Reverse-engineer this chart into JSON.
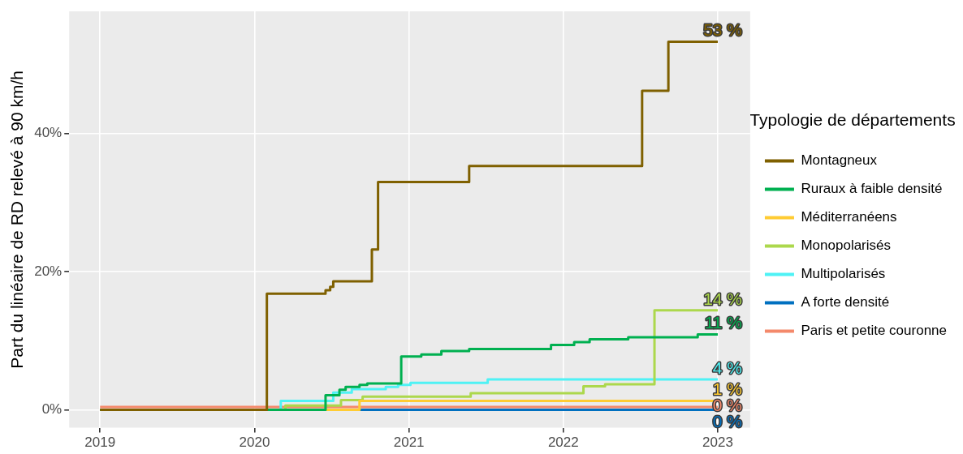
{
  "chart_data": {
    "type": "step",
    "ylabel": "Part du linéaire de RD relevé à 90 km/h",
    "legend_title": "Typologie de départements",
    "legend": "right",
    "grid": true,
    "xlim": [
      2018.8,
      2023.21
    ],
    "xticks": [
      2019,
      2020,
      2021,
      2022,
      2023
    ],
    "ylim": [
      -2.6,
      57.7
    ],
    "yticks": [
      {
        "value": 0,
        "label": "0%"
      },
      {
        "value": 20,
        "label": "20%"
      },
      {
        "value": 40,
        "label": "40%"
      }
    ],
    "series": [
      {
        "name": "Montagneux",
        "color": "#7f6000",
        "x": [
          2019,
          2020.08,
          2020.46,
          2020.49,
          2020.51,
          2020.76,
          2020.8,
          2021.39,
          2022.51,
          2022.68,
          2023
        ],
        "values": [
          0,
          16.8,
          17.3,
          17.8,
          18.6,
          23.2,
          33.0,
          35.3,
          46.2,
          53.3,
          53.3
        ],
        "value_labels": [
          null,
          null,
          null,
          null,
          null,
          null,
          null,
          null,
          null,
          null,
          "53 %"
        ]
      },
      {
        "name": "Ruraux à faible densité",
        "color": "#00b050",
        "x": [
          2019,
          2020.46,
          2020.55,
          2020.59,
          2020.68,
          2020.73,
          2020.95,
          2021.08,
          2021.21,
          2021.39,
          2021.92,
          2022.07,
          2022.17,
          2022.42,
          2022.87,
          2023
        ],
        "values": [
          0,
          2.1,
          2.9,
          3.3,
          3.6,
          3.8,
          7.7,
          8.0,
          8.5,
          8.8,
          9.4,
          9.8,
          10.2,
          10.5,
          10.9,
          10.9
        ],
        "value_labels": [
          null,
          null,
          null,
          null,
          null,
          null,
          null,
          null,
          null,
          null,
          null,
          null,
          null,
          null,
          null,
          "11 %"
        ]
      },
      {
        "name": "Méditerranéens",
        "color": "#ffcc33",
        "x": [
          2019,
          2020.68,
          2023
        ],
        "values": [
          0,
          1.3,
          1.3
        ],
        "value_labels": [
          null,
          null,
          "1 %"
        ]
      },
      {
        "name": "Monopolarisés",
        "color": "#acd84c",
        "x": [
          2019,
          2020.2,
          2020.56,
          2020.7,
          2021.4,
          2022.13,
          2022.27,
          2022.59,
          2023
        ],
        "values": [
          0,
          0.6,
          1.4,
          1.9,
          2.4,
          3.4,
          3.7,
          14.4,
          14.4
        ],
        "value_labels": [
          null,
          null,
          null,
          null,
          null,
          null,
          null,
          null,
          "14 %"
        ]
      },
      {
        "name": "Multipolarisés",
        "color": "#4ff2f5",
        "x": [
          2019,
          2020.17,
          2020.51,
          2020.63,
          2020.85,
          2020.93,
          2021.01,
          2021.51,
          2023
        ],
        "values": [
          0,
          1.3,
          2.5,
          3.0,
          3.3,
          3.6,
          3.9,
          4.4,
          4.4
        ],
        "value_labels": [
          null,
          null,
          null,
          null,
          null,
          null,
          null,
          null,
          "4 %"
        ]
      },
      {
        "name": "A forte densité",
        "color": "#0070c0",
        "x": [
          2019,
          2023
        ],
        "values": [
          0,
          0
        ],
        "value_labels": [
          null,
          "0 %"
        ]
      },
      {
        "name": "Paris et petite couronne",
        "color": "#f4896b",
        "x": [
          2019,
          2023
        ],
        "values": [
          0.4,
          0.4
        ],
        "value_labels": [
          null,
          "0 %"
        ]
      }
    ]
  }
}
